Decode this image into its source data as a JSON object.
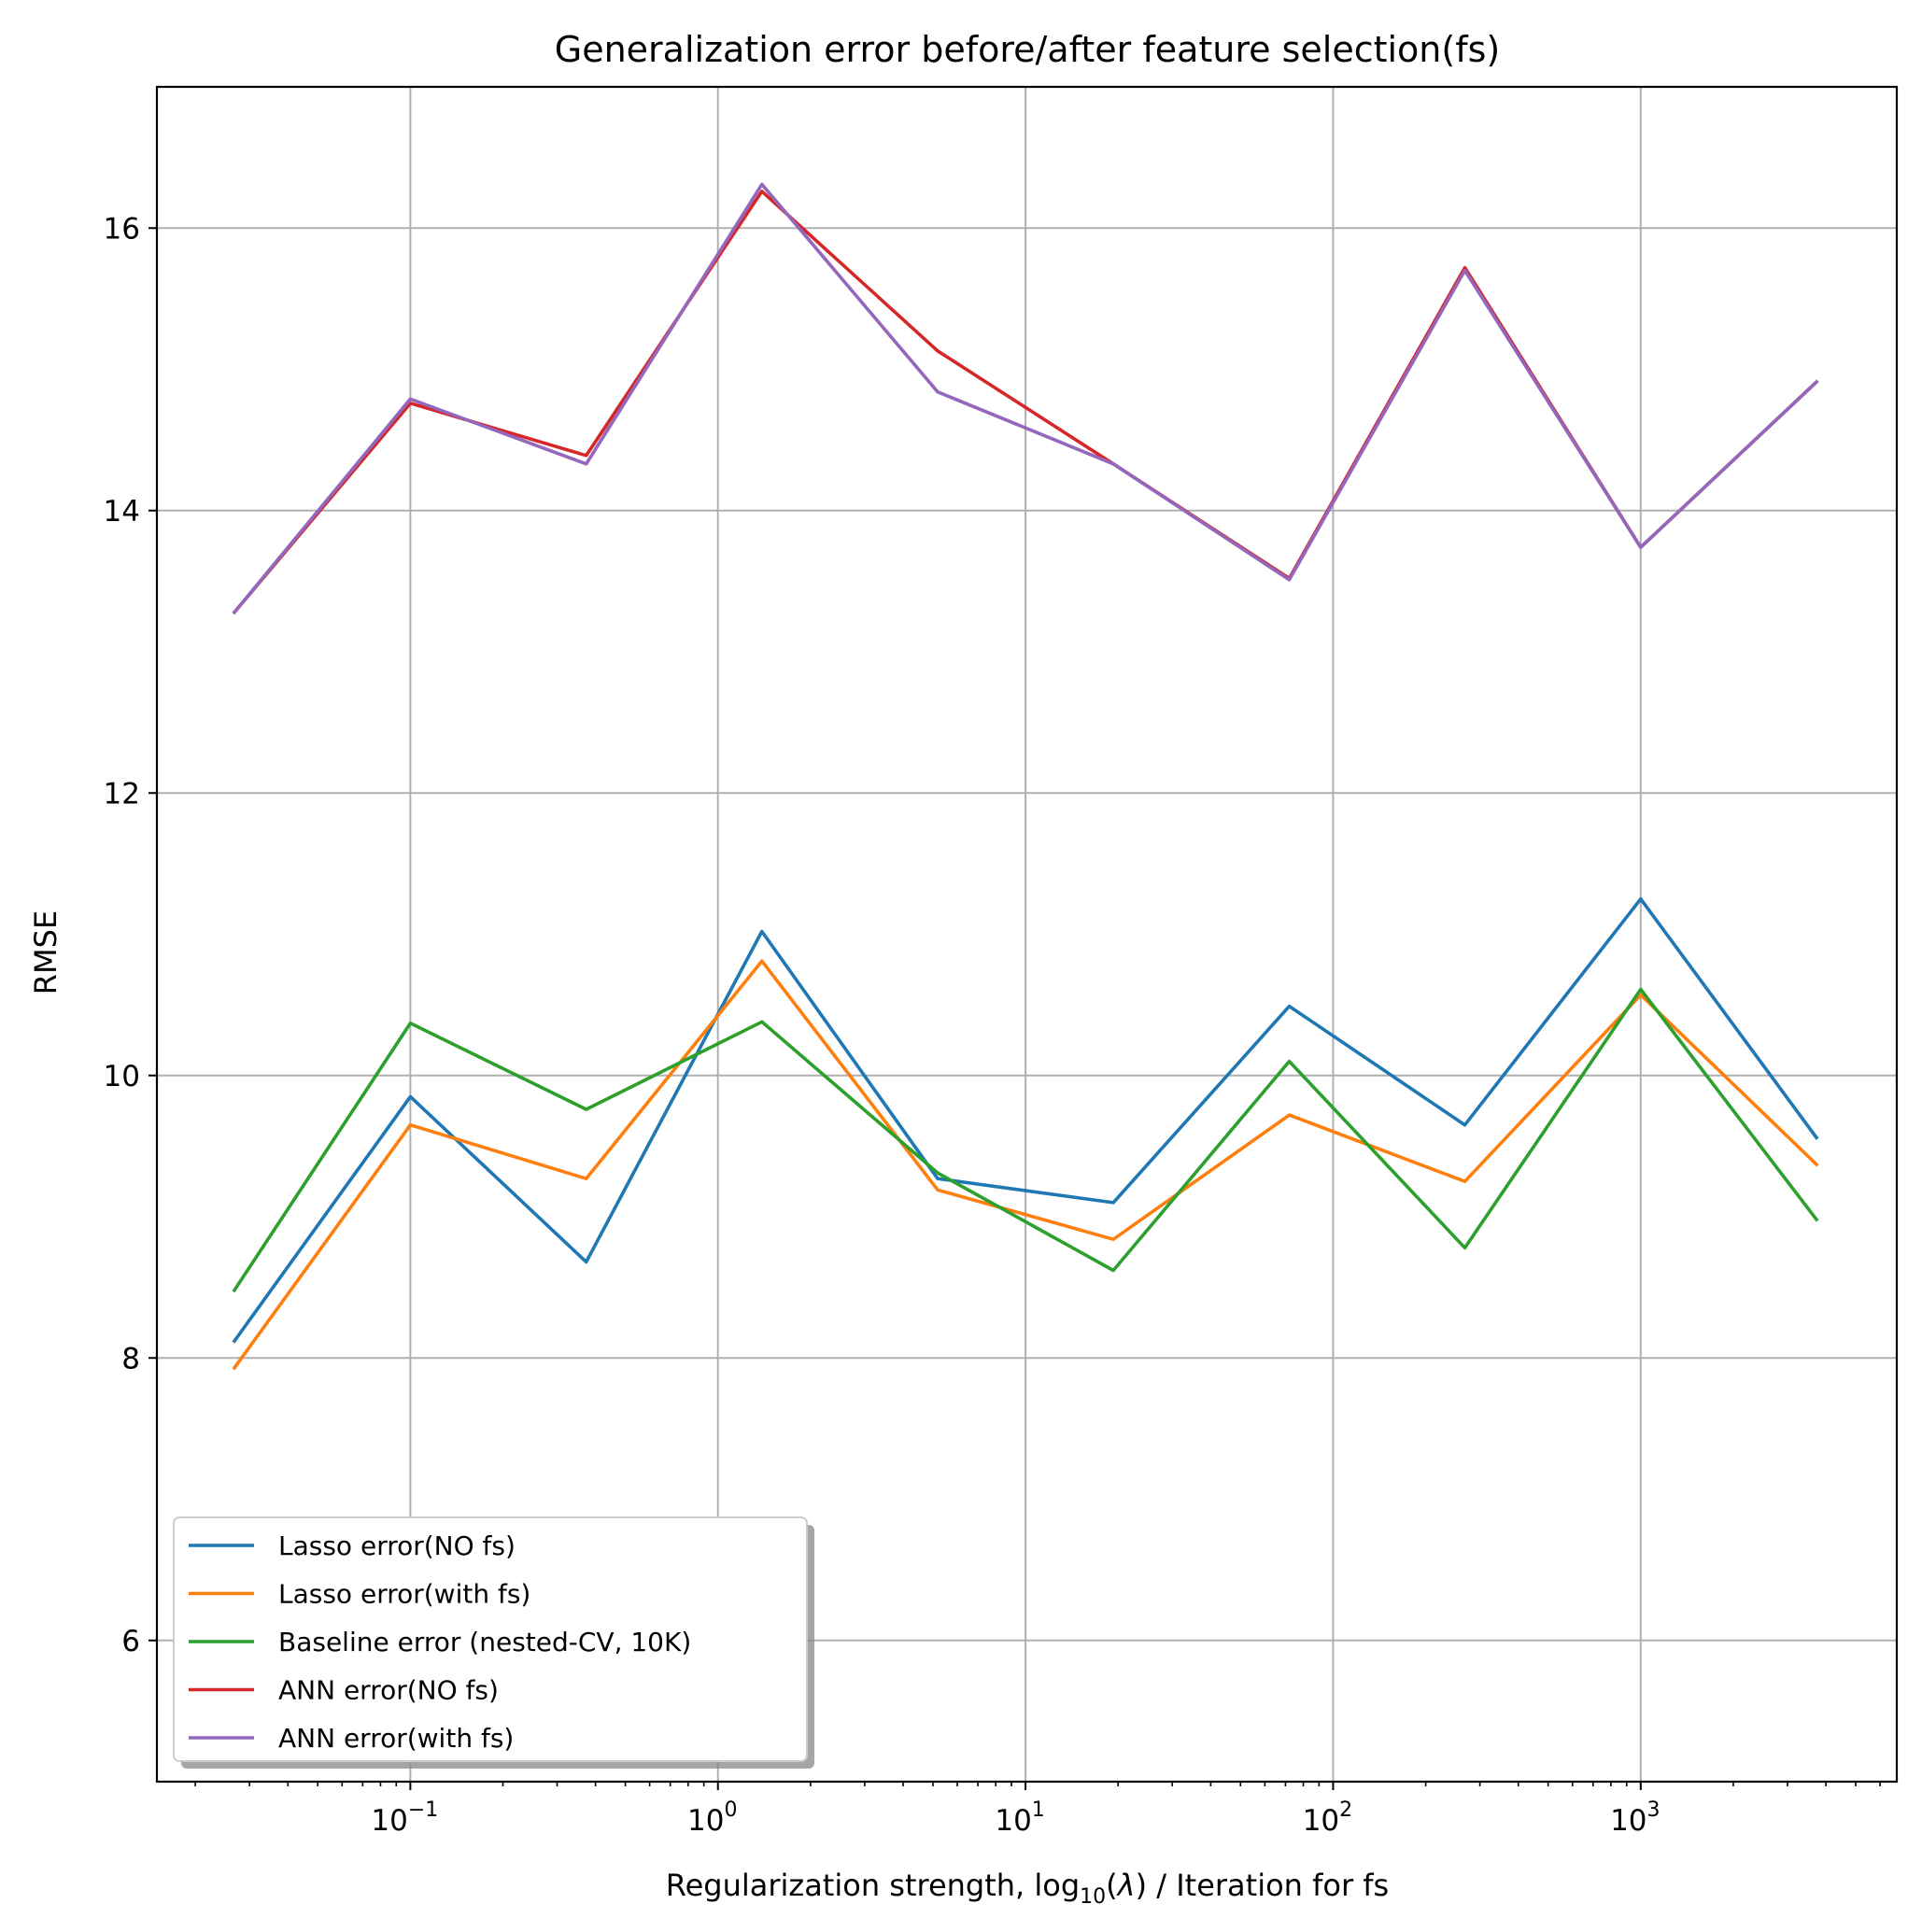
{
  "chart_data": {
    "type": "line",
    "title": "Generalization error before/after feature selection(fs)",
    "xlabel": {
      "pre": "Regularization strength, log",
      "sub": "10",
      "mid": "(",
      "var": "λ",
      "post": ") / Iteration for fs"
    },
    "ylabel": "RMSE",
    "xscale": "log",
    "xlim": [
      0.015,
      6800
    ],
    "ylim": [
      5.0,
      17.0
    ],
    "xticks": [
      {
        "value": 0.1,
        "base": "10",
        "exp": "−1"
      },
      {
        "value": 1,
        "base": "10",
        "exp": "0"
      },
      {
        "value": 10,
        "base": "10",
        "exp": "1"
      },
      {
        "value": 100,
        "base": "10",
        "exp": "2"
      },
      {
        "value": 1000,
        "base": "10",
        "exp": "3"
      }
    ],
    "yticks": [
      {
        "value": 6,
        "label": "6"
      },
      {
        "value": 8,
        "label": "8"
      },
      {
        "value": 10,
        "label": "10"
      },
      {
        "value": 12,
        "label": "12"
      },
      {
        "value": 14,
        "label": "14"
      },
      {
        "value": 16,
        "label": "16"
      }
    ],
    "grid": true,
    "legend_position": "lower-left",
    "x": [
      0.0268,
      0.1,
      0.373,
      1.39,
      5.18,
      19.3,
      72.0,
      268,
      1000,
      3728
    ],
    "series": [
      {
        "name": "Lasso error(NO fs)",
        "color": "#1f77b4",
        "values": [
          8.12,
          9.85,
          8.68,
          11.02,
          9.27,
          9.1,
          10.49,
          9.65,
          11.25,
          9.56
        ]
      },
      {
        "name": "Lasso error(with fs)",
        "color": "#ff7f0e",
        "values": [
          7.93,
          9.65,
          9.27,
          10.81,
          9.19,
          8.84,
          9.72,
          9.25,
          10.57,
          9.37
        ]
      },
      {
        "name": "Baseline error (nested-CV, 10K)",
        "color": "#2ca02c",
        "values": [
          8.48,
          10.37,
          9.76,
          10.38,
          9.31,
          8.62,
          10.1,
          8.78,
          10.61,
          8.98
        ]
      },
      {
        "name": "ANN error(NO fs)",
        "color": "#d62728",
        "values": [
          13.28,
          14.76,
          14.39,
          16.26,
          15.13,
          14.33,
          13.52,
          15.72,
          13.74,
          14.91
        ]
      },
      {
        "name": "ANN error(with fs)",
        "color": "#9467bd",
        "values": [
          13.28,
          14.79,
          14.33,
          16.31,
          14.84,
          14.33,
          13.51,
          15.7,
          13.74,
          14.91
        ]
      }
    ]
  }
}
